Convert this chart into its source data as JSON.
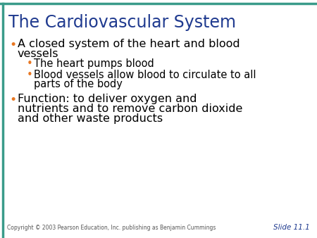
{
  "title": "The Cardiovascular System",
  "title_color": "#1F3A8F",
  "title_fontsize": 17,
  "background_color": "#FFFFFF",
  "border_top_color": "#3A9B8A",
  "border_left_color": "#3A9B8A",
  "bullet_color": "#E87722",
  "text_color": "#000000",
  "copyright_text": "Copyright © 2003 Pearson Education, Inc. publishing as Benjamin Cummings",
  "slide_label": "Slide 11.1",
  "slide_label_color": "#1F3A8F",
  "bullet1_line1": "A closed system of the heart and blood",
  "bullet1_line2": "vessels",
  "sub_bullet1": "The heart pumps blood",
  "sub_bullet2_line1": "Blood vessels allow blood to circulate to all",
  "sub_bullet2_line2": "parts of the body",
  "bullet2_line1": "Function: to deliver oxygen and",
  "bullet2_line2": "nutrients and to remove carbon dioxide",
  "bullet2_line3": "and other waste products",
  "main_bullet_fontsize": 11.5,
  "sub_bullet_fontsize": 10.5,
  "copyright_fontsize": 5.5,
  "slide_label_fontsize": 7.5
}
